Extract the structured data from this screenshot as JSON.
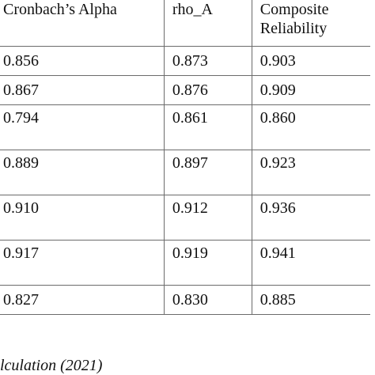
{
  "table": {
    "headers": {
      "alpha": "Cronbach’s Alpha",
      "rho": "rho_A",
      "cr_line1": "Composite",
      "cr_line2": "Reliability"
    },
    "rows": [
      {
        "alpha": "0.856",
        "rho": "0.873",
        "cr": "0.903"
      },
      {
        "alpha": "0.867",
        "rho": "0.876",
        "cr": "0.909"
      },
      {
        "alpha": "0.794",
        "rho": "0.861",
        "cr": "0.860"
      },
      {
        "alpha": "0.889",
        "rho": "0.897",
        "cr": "0.923"
      },
      {
        "alpha": "0.910",
        "rho": "0.912",
        "cr": "0.936"
      },
      {
        "alpha": "0.917",
        "rho": "0.919",
        "cr": "0.941"
      },
      {
        "alpha": "0.827",
        "rho": "0.830",
        "cr": "0.885"
      }
    ]
  },
  "footer": {
    "source_note": "lculation (2021)"
  }
}
